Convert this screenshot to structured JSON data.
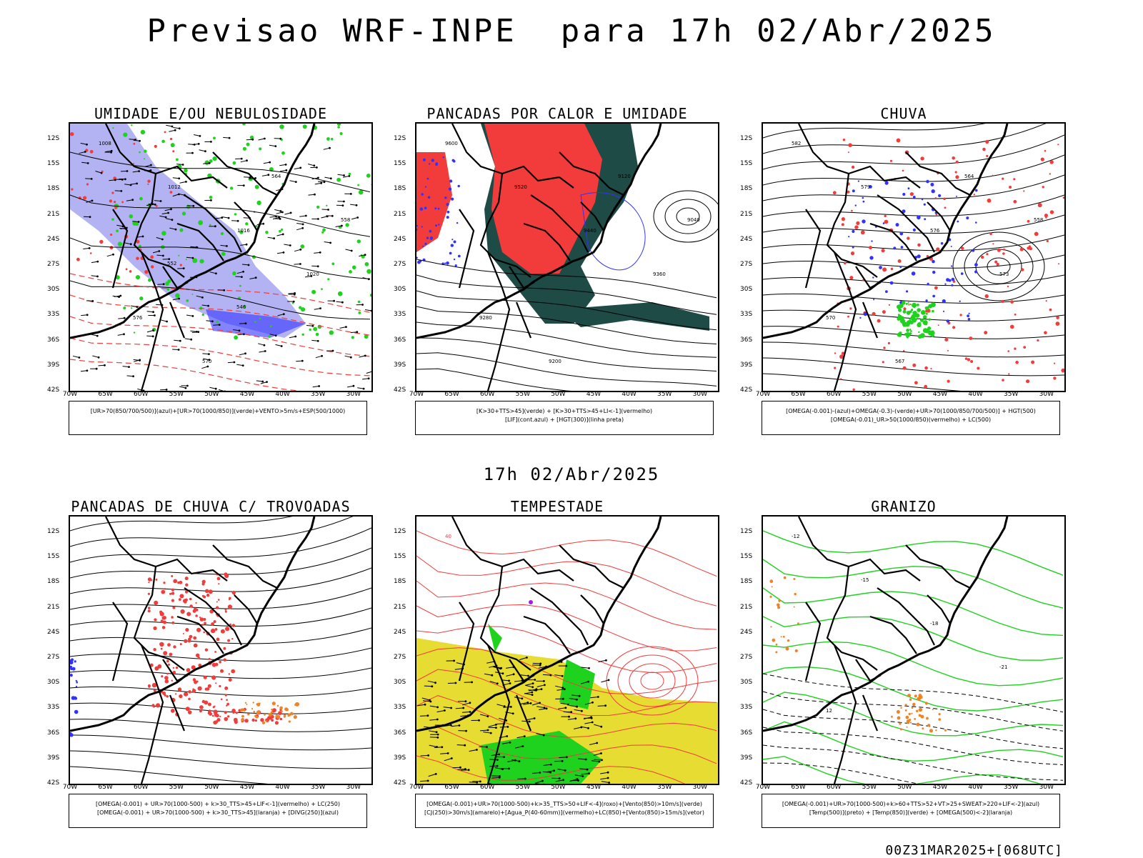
{
  "header": {
    "title": "Previsao WRF-INPE  para 17h 02/Abr/2025",
    "mid_title": "17h 02/Abr/2025",
    "run_label": "00Z31MAR2025+[068UTC]"
  },
  "axes": {
    "lat": [
      "12S",
      "15S",
      "18S",
      "21S",
      "24S",
      "27S",
      "30S",
      "33S",
      "36S",
      "39S",
      "42S"
    ],
    "lon": [
      "70W",
      "65W",
      "60W",
      "55W",
      "50W",
      "45W",
      "40W",
      "35W",
      "30W"
    ]
  },
  "panels": [
    {
      "title": "UMIDADE E/OU NEBULOSIDADE",
      "legend": [
        "[UR>70(850/700/500)](azul)+[UR>70(1000/850)](verde)+VENTO>5m/s+ESP(500/1000)"
      ],
      "labels": [
        "1008",
        "1012",
        "1016",
        "1020",
        "576",
        "570",
        "564",
        "558",
        "552",
        "546"
      ]
    },
    {
      "title": "PANCADAS POR CALOR E UMIDADE",
      "legend": [
        "[K>30+TTS>45](verde) + [K>30+TTS>45+LI<-1](vermelho)",
        "[LIF](cont.azul) + [HGT(300)](linha preta)"
      ],
      "labels": [
        "9600",
        "9520",
        "9440",
        "9360",
        "9280",
        "9200",
        "9120",
        "9040"
      ]
    },
    {
      "title": "CHUVA",
      "legend": [
        "[OMEGA(-0.001)-(azul)+OMEGA(-0.3)-(verde)+UR>70(1000/850/700/500)] + HGT(500)",
        "[OMEGA(-0.01)_UR>50(1000/850)(vermelho) + LC(500)"
      ],
      "labels": [
        "582",
        "579",
        "576",
        "573",
        "570",
        "567",
        "564",
        "558"
      ]
    },
    {
      "title": "PANCADAS DE CHUVA C/ TROVOADAS",
      "legend": [
        "[OMEGA(-0.001) + UR>70(1000-500) + k>30_TTS>45+LIF<-1](vermelho) + LC(250)",
        "[OMEGA(-0.001) + UR>70(1000-500) + k>30_TTS>45](laranja) + [DIVG(250)](azul)"
      ],
      "labels": []
    },
    {
      "title": "TEMPESTADE",
      "legend": [
        "[OMEGA(-0.001)+UR>70(1000-500)+k>35_TTS>50+LIF<-4](roxo)+[Vento(850)>10m/s](verde)",
        "[CJ(250)>30m/s](amarelo)+[Agua_P(40-60mm)](vermelho)+LC(850)+[Vento(850)>15m/s](vetor)"
      ],
      "labels": [
        "40"
      ]
    },
    {
      "title": "GRANIZO",
      "legend": [
        "[OMEGA(-0.001)+UR>70(1000-500)+k>60+TTS>52+VT>25+SWEAT>220+LIF<-2](azul)",
        "[Temp(500)](preto) + [Temp(850)](verde) + [OMEGA(500)<-2](laranja)"
      ],
      "labels": [
        "-12",
        "-15",
        "-18",
        "-21",
        "12"
      ]
    }
  ],
  "colors": {
    "red": "#f23c3c",
    "green": "#1ed21e",
    "blue": "#3232ff",
    "lavender": "#a0a0f0",
    "darkteal": "#1e4b46",
    "yellow": "#e6dc32",
    "orange": "#f08228",
    "purple": "#a01ee6"
  }
}
